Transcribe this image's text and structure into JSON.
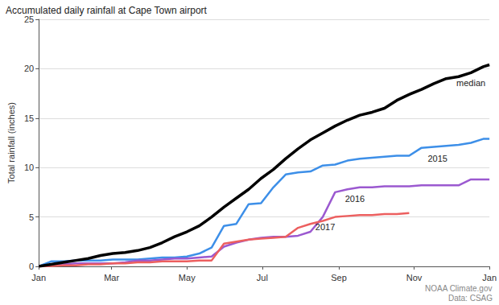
{
  "chart_data": {
    "type": "line",
    "title": "Accumulated daily rainfall at Cape Town airport",
    "y_label": "Total rainfall (inches)",
    "source": [
      "NOAA Climate.gov",
      "Data: CSAG"
    ],
    "x": [
      0,
      10,
      20,
      30,
      40,
      50,
      60,
      70,
      80,
      90,
      100,
      110,
      120,
      130,
      140,
      150,
      160,
      170,
      180,
      190,
      200,
      210,
      220,
      230,
      240,
      250,
      260,
      270,
      280,
      290,
      300,
      310,
      320,
      330,
      340,
      350,
      360,
      365
    ],
    "series": [
      {
        "name": "median",
        "color": "#000000",
        "values": [
          0,
          0.2,
          0.4,
          0.6,
          0.8,
          1.1,
          1.3,
          1.4,
          1.6,
          1.9,
          2.4,
          3.0,
          3.5,
          4.1,
          5.0,
          6.0,
          6.9,
          7.8,
          8.9,
          9.8,
          10.9,
          11.9,
          12.8,
          13.5,
          14.2,
          14.8,
          15.3,
          15.6,
          16.0,
          16.8,
          17.4,
          17.9,
          18.5,
          19.0,
          19.2,
          19.6,
          20.2,
          20.4
        ]
      },
      {
        "name": "2015",
        "color": "#3d8fe8",
        "values": [
          0,
          0.5,
          0.5,
          0.6,
          0.6,
          0.6,
          0.7,
          0.7,
          0.7,
          0.8,
          0.9,
          0.9,
          1.0,
          1.3,
          1.9,
          4.1,
          4.3,
          6.3,
          6.4,
          8.0,
          9.3,
          9.5,
          9.6,
          10.2,
          10.3,
          10.7,
          10.9,
          11.0,
          11.1,
          11.2,
          11.2,
          12.0,
          12.1,
          12.2,
          12.3,
          12.5,
          12.9,
          12.9
        ]
      },
      {
        "name": "2016",
        "color": "#9b59d0",
        "values": [
          0,
          0.1,
          0.2,
          0.3,
          0.3,
          0.3,
          0.3,
          0.4,
          0.6,
          0.6,
          0.7,
          0.8,
          0.8,
          0.9,
          1.0,
          2.0,
          2.4,
          2.7,
          2.9,
          3.0,
          3.0,
          3.1,
          3.5,
          5.0,
          7.5,
          7.8,
          8.0,
          8.0,
          8.1,
          8.1,
          8.1,
          8.2,
          8.2,
          8.2,
          8.2,
          8.8,
          8.8,
          8.8
        ]
      },
      {
        "name": "2017",
        "color": "#ec5f5f",
        "values": [
          0,
          0.05,
          0.1,
          0.1,
          0.2,
          0.2,
          0.3,
          0.3,
          0.4,
          0.4,
          0.5,
          0.5,
          0.5,
          0.6,
          0.6,
          2.3,
          2.5,
          2.7,
          2.8,
          2.9,
          3.0,
          3.9,
          4.3,
          4.6,
          5.0,
          5.1,
          5.2,
          5.2,
          5.3,
          5.3,
          5.4,
          null,
          null,
          null,
          null,
          null,
          null,
          null
        ]
      }
    ],
    "annotations": [
      {
        "text": "median",
        "x": 350,
        "y": 18.6
      },
      {
        "text": "2015",
        "x": 323,
        "y": 10.9
      },
      {
        "text": "2016",
        "x": 256,
        "y": 6.8
      },
      {
        "text": "2017",
        "x": 232,
        "y": 4.0
      }
    ],
    "xlim": [
      0,
      365
    ],
    "xticks": [
      {
        "value": 0,
        "label": "Jan"
      },
      {
        "value": 59,
        "label": "Mar"
      },
      {
        "value": 120,
        "label": "May"
      },
      {
        "value": 181,
        "label": "Jul"
      },
      {
        "value": 243,
        "label": "Sep"
      },
      {
        "value": 304,
        "label": "Nov"
      },
      {
        "value": 365,
        "label": "Jan"
      }
    ],
    "ylim": [
      0,
      25
    ],
    "yticks": [
      0,
      5,
      10,
      15,
      20,
      25
    ],
    "grid": true
  }
}
